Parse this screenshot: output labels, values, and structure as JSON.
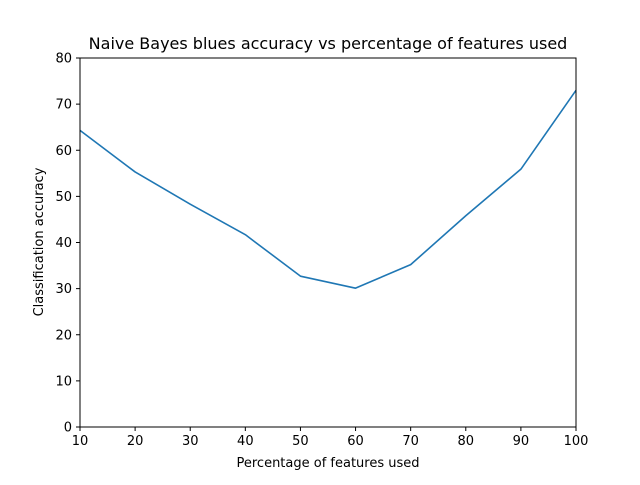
{
  "chart_data": {
    "type": "line",
    "title": "Naive Bayes blues accuracy vs percentage of features used",
    "xlabel": "Percentage of features used",
    "ylabel": "Classification accuracy",
    "xlim": [
      10,
      100
    ],
    "ylim": [
      0,
      80
    ],
    "xticks": [
      10,
      20,
      30,
      40,
      50,
      60,
      70,
      80,
      90,
      100
    ],
    "yticks": [
      0,
      10,
      20,
      30,
      40,
      50,
      60,
      70,
      80
    ],
    "grid": false,
    "series": [
      {
        "name": "accuracy",
        "color": "#1f77b4",
        "x": [
          10,
          20,
          30,
          40,
          50,
          60,
          70,
          80,
          90,
          100
        ],
        "y": [
          64.3,
          55.3,
          48.3,
          41.7,
          32.7,
          30.1,
          35.2,
          45.8,
          55.9,
          73.0
        ]
      }
    ]
  }
}
